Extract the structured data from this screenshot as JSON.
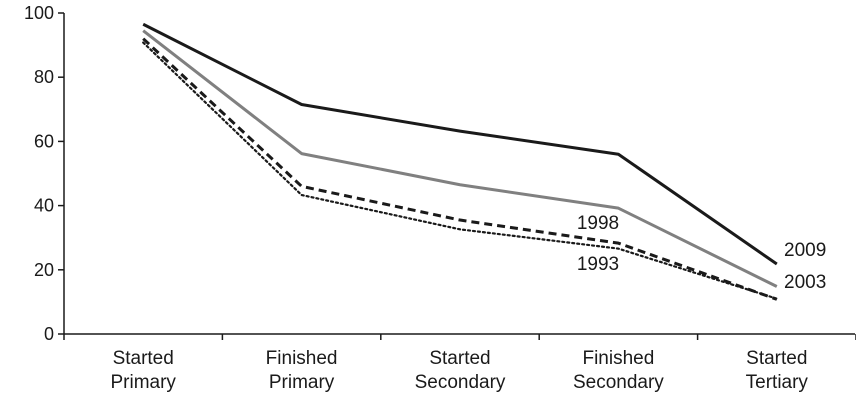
{
  "chart_data": {
    "type": "line",
    "title": "",
    "xlabel": "",
    "ylabel": "",
    "categories": [
      [
        "Started",
        "Primary"
      ],
      [
        "Finished",
        "Primary"
      ],
      [
        "Started",
        "Secondary"
      ],
      [
        "Finished",
        "Secondary"
      ],
      [
        "Started",
        "Tertiary"
      ]
    ],
    "ylim": [
      0,
      100
    ],
    "yticks": [
      "0",
      "20",
      "40",
      "60",
      "80",
      "100"
    ],
    "grid": false,
    "legend": "none",
    "series": [
      {
        "name": "2009",
        "values": [
          96.5,
          71.5,
          63.2,
          56.0,
          21.8
        ],
        "color": "#1a1a1a",
        "style": "solid"
      },
      {
        "name": "2003",
        "values": [
          94.5,
          56.2,
          46.5,
          39.2,
          14.8
        ],
        "color": "#808080",
        "style": "solid"
      },
      {
        "name": "1998",
        "values": [
          92.0,
          46.0,
          35.5,
          28.3,
          10.8
        ],
        "color": "#1a1a1a",
        "style": "dashed"
      },
      {
        "name": "1993",
        "values": [
          90.8,
          43.3,
          32.6,
          26.6,
          11.0
        ],
        "color": "#1a1a1a",
        "style": "dotted"
      }
    ]
  }
}
